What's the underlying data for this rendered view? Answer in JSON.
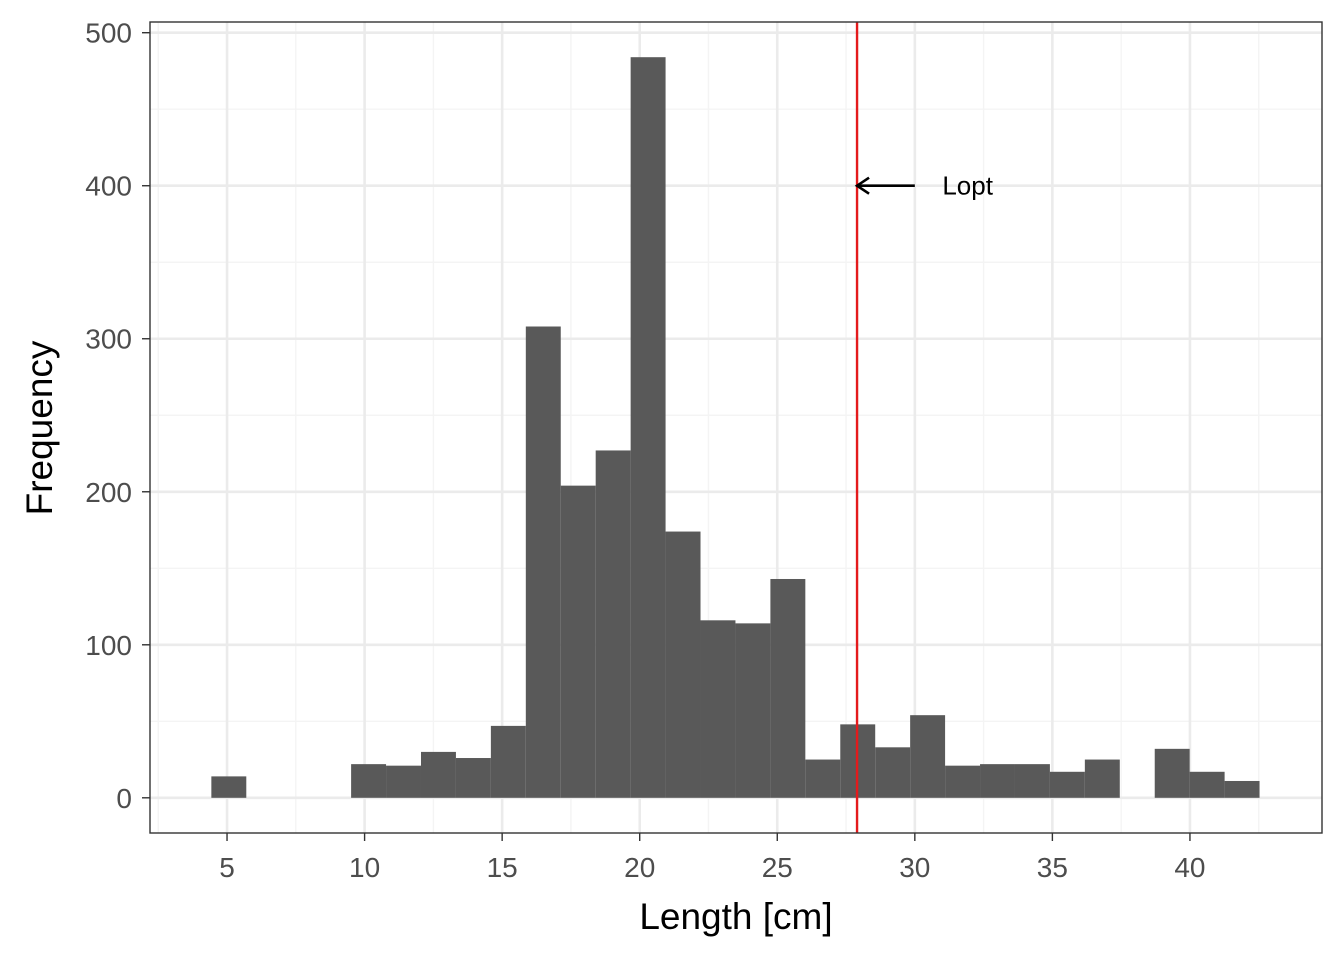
{
  "chart_data": {
    "type": "bar",
    "title": "",
    "xlabel": "Length [cm]",
    "ylabel": "Frequency",
    "xlim": [
      2.2,
      44.8
    ],
    "ylim": [
      -23,
      507
    ],
    "x_ticks": [
      5,
      10,
      15,
      20,
      25,
      30,
      35,
      40
    ],
    "x_tick_labels": [
      "5",
      "10",
      "15",
      "20",
      "25",
      "30",
      "35",
      "40"
    ],
    "y_ticks": [
      0,
      100,
      200,
      300,
      400,
      500
    ],
    "y_tick_labels": [
      "0",
      "100",
      "200",
      "300",
      "400",
      "500"
    ],
    "bin_width": 1.27,
    "bins": [
      {
        "x_start": 4.43,
        "x_end": 5.7,
        "count": 14
      },
      {
        "x_start": 5.7,
        "x_end": 6.97,
        "count": 0
      },
      {
        "x_start": 6.97,
        "x_end": 8.24,
        "count": 0
      },
      {
        "x_start": 8.24,
        "x_end": 9.51,
        "count": 0
      },
      {
        "x_start": 9.51,
        "x_end": 10.78,
        "count": 22
      },
      {
        "x_start": 10.78,
        "x_end": 12.05,
        "count": 21
      },
      {
        "x_start": 12.05,
        "x_end": 13.32,
        "count": 30
      },
      {
        "x_start": 13.32,
        "x_end": 14.59,
        "count": 26
      },
      {
        "x_start": 14.59,
        "x_end": 15.86,
        "count": 47
      },
      {
        "x_start": 15.86,
        "x_end": 17.13,
        "count": 308
      },
      {
        "x_start": 17.13,
        "x_end": 18.4,
        "count": 204
      },
      {
        "x_start": 18.4,
        "x_end": 19.67,
        "count": 227
      },
      {
        "x_start": 19.67,
        "x_end": 20.94,
        "count": 484
      },
      {
        "x_start": 20.94,
        "x_end": 22.21,
        "count": 174
      },
      {
        "x_start": 22.21,
        "x_end": 23.48,
        "count": 116
      },
      {
        "x_start": 23.48,
        "x_end": 24.75,
        "count": 114
      },
      {
        "x_start": 24.75,
        "x_end": 26.02,
        "count": 143
      },
      {
        "x_start": 26.02,
        "x_end": 27.29,
        "count": 25
      },
      {
        "x_start": 27.29,
        "x_end": 28.56,
        "count": 48
      },
      {
        "x_start": 28.56,
        "x_end": 29.83,
        "count": 33
      },
      {
        "x_start": 29.83,
        "x_end": 31.1,
        "count": 54
      },
      {
        "x_start": 31.1,
        "x_end": 32.37,
        "count": 21
      },
      {
        "x_start": 32.37,
        "x_end": 33.64,
        "count": 22
      },
      {
        "x_start": 33.64,
        "x_end": 34.91,
        "count": 22
      },
      {
        "x_start": 34.91,
        "x_end": 36.18,
        "count": 17
      },
      {
        "x_start": 36.18,
        "x_end": 37.45,
        "count": 25
      },
      {
        "x_start": 37.45,
        "x_end": 38.72,
        "count": 0
      },
      {
        "x_start": 38.72,
        "x_end": 39.99,
        "count": 32
      },
      {
        "x_start": 39.99,
        "x_end": 41.26,
        "count": 17
      },
      {
        "x_start": 41.26,
        "x_end": 42.53,
        "count": 11
      }
    ],
    "reference_line": {
      "x": 27.9,
      "color": "#e41a1c"
    },
    "annotation": {
      "text": "Lopt",
      "arrow_tip": {
        "x": 27.9,
        "y": 400
      },
      "arrow_tail": {
        "x": 30.0,
        "y": 400
      },
      "text_anchor": {
        "x": 31.0,
        "y": 400
      }
    },
    "grid": true,
    "legend": "none",
    "colors": {
      "bar_fill": "#595959",
      "panel_background": "#ffffff",
      "panel_border": "#333333",
      "grid_major": "#ebebeb",
      "grid_minor": "#f4f4f4",
      "tick_text": "#4d4d4d",
      "axis_title": "#000000",
      "reference_line": "#e41a1c",
      "annotation": "#000000"
    }
  }
}
